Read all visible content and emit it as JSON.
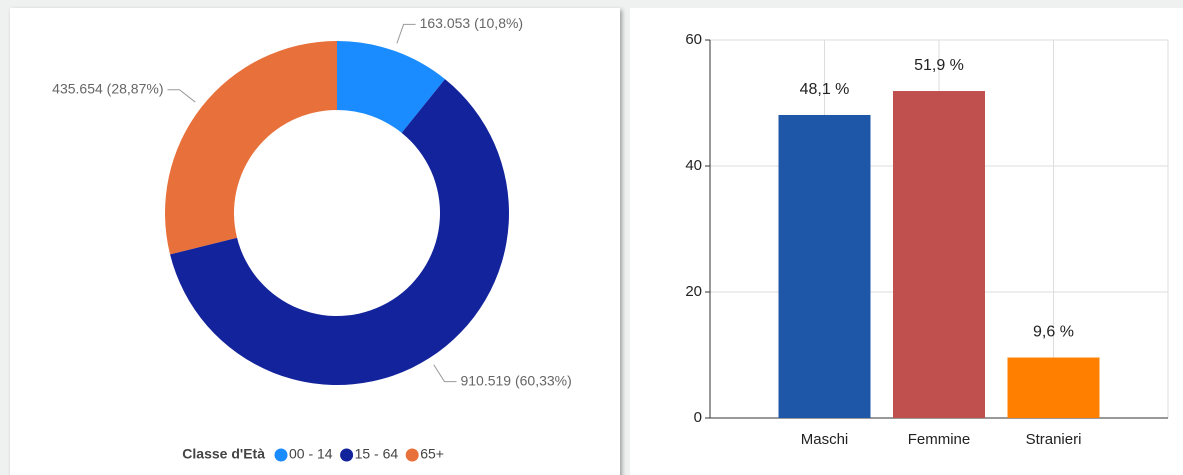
{
  "chart_data": [
    {
      "type": "donut",
      "legend_title": "Classe d'Età",
      "categories": [
        "00 - 14",
        "15 - 64",
        "65+"
      ],
      "values": [
        163053,
        910519,
        435654
      ],
      "value_labels": [
        "163.053 (10,8%)",
        "910.519 (60,33%)",
        "435.654 (28,87%)"
      ],
      "colors": [
        "#1a8cff",
        "#13239b",
        "#e8703a"
      ],
      "legend": "bottom"
    },
    {
      "type": "bar",
      "categories": [
        "Maschi",
        "Femmine",
        "Stranieri"
      ],
      "values": [
        48.1,
        51.9,
        9.6
      ],
      "value_labels": [
        "48,1 %",
        "51,9 %",
        "9,6 %"
      ],
      "colors": [
        "#1f57a8",
        "#c0504d",
        "#ff8000"
      ],
      "ylim": [
        0,
        60
      ],
      "yticks": [
        0,
        20,
        40,
        60
      ],
      "grid": true
    }
  ]
}
